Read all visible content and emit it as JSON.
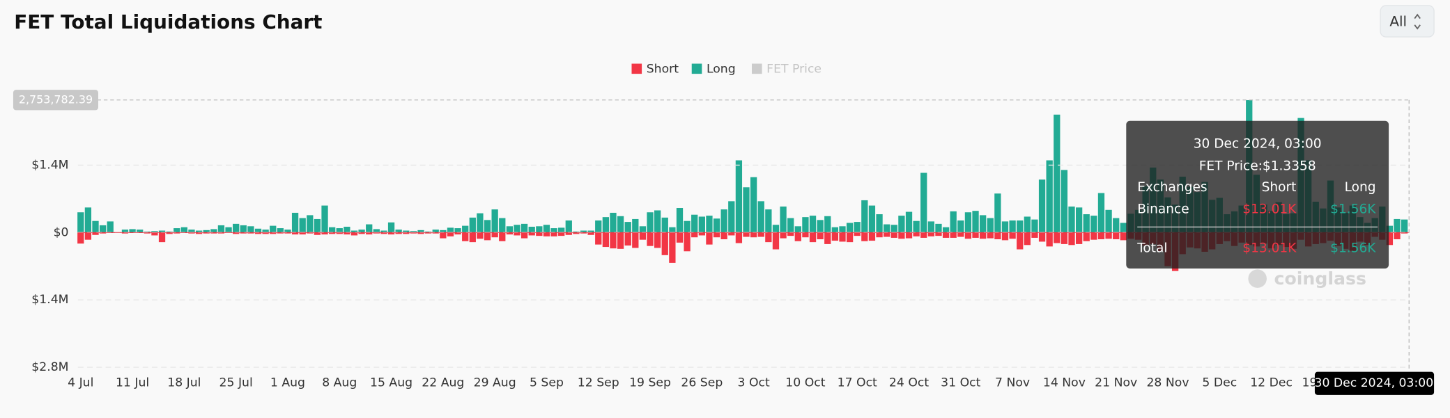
{
  "chart_data": {
    "type": "bar",
    "title": "FET Total Liquidations Chart",
    "range_selector": "All",
    "watermark": "coinglass",
    "categories": [
      "4 Jul",
      null,
      null,
      null,
      null,
      null,
      null,
      "11 Jul",
      null,
      null,
      null,
      null,
      null,
      null,
      "18 Jul",
      null,
      null,
      null,
      null,
      null,
      null,
      "25 Jul",
      null,
      null,
      null,
      null,
      null,
      null,
      "1 Aug",
      null,
      null,
      null,
      null,
      null,
      null,
      "8 Aug",
      null,
      null,
      null,
      null,
      null,
      null,
      "15 Aug",
      null,
      null,
      null,
      null,
      null,
      null,
      "22 Aug",
      null,
      null,
      null,
      null,
      null,
      null,
      "29 Aug",
      null,
      null,
      null,
      null,
      null,
      null,
      "5 Sep",
      null,
      null,
      null,
      null,
      null,
      null,
      "12 Sep",
      null,
      null,
      null,
      null,
      null,
      null,
      "19 Sep",
      null,
      null,
      null,
      null,
      null,
      null,
      "26 Sep",
      null,
      null,
      null,
      null,
      null,
      null,
      "3 Oct",
      null,
      null,
      null,
      null,
      null,
      null,
      "10 Oct",
      null,
      null,
      null,
      null,
      null,
      null,
      "17 Oct",
      null,
      null,
      null,
      null,
      null,
      null,
      "24 Oct",
      null,
      null,
      null,
      null,
      null,
      null,
      "31 Oct",
      null,
      null,
      null,
      null,
      null,
      null,
      "7 Nov",
      null,
      null,
      null,
      null,
      null,
      null,
      "14 Nov",
      null,
      null,
      null,
      null,
      null,
      null,
      "21 Nov",
      null,
      null,
      null,
      null,
      null,
      null,
      "28 Nov",
      null,
      null,
      null,
      null,
      null,
      null,
      "5 Dec",
      null,
      null,
      null,
      null,
      null,
      null,
      "12 Dec",
      null,
      null,
      null,
      null,
      null,
      null,
      "19 Dec",
      null,
      null,
      null,
      null,
      null,
      null,
      null,
      null,
      null,
      null,
      null
    ],
    "series": [
      {
        "name": "Short",
        "color": "#f23645",
        "values": [
          -230000,
          -150000,
          -50000,
          -20000,
          -10000,
          -10000,
          -20000,
          -10000,
          -10000,
          -20000,
          -60000,
          -200000,
          -30000,
          -20000,
          -10000,
          -20000,
          -30000,
          -20000,
          -20000,
          -20000,
          -10000,
          -30000,
          -20000,
          -20000,
          -30000,
          -30000,
          -30000,
          -20000,
          -20000,
          -40000,
          -40000,
          -20000,
          -50000,
          -40000,
          -30000,
          -30000,
          -40000,
          -60000,
          -30000,
          -40000,
          -20000,
          -30000,
          -40000,
          -30000,
          -30000,
          -20000,
          -30000,
          -20000,
          -20000,
          -120000,
          -80000,
          -40000,
          -180000,
          -200000,
          -130000,
          -160000,
          -100000,
          -180000,
          -40000,
          -60000,
          -120000,
          -60000,
          -70000,
          -80000,
          -80000,
          -70000,
          -50000,
          -30000,
          -20000,
          -50000,
          -250000,
          -300000,
          -330000,
          -340000,
          -270000,
          -320000,
          -150000,
          -280000,
          -320000,
          -470000,
          -630000,
          -210000,
          -390000,
          -100000,
          -60000,
          -250000,
          -100000,
          -140000,
          -60000,
          -220000,
          -90000,
          -100000,
          -90000,
          -200000,
          -350000,
          -120000,
          -70000,
          -180000,
          -100000,
          -200000,
          -140000,
          -240000,
          -170000,
          -190000,
          -200000,
          -70000,
          -180000,
          -170000,
          -100000,
          -90000,
          -110000,
          -130000,
          -120000,
          -80000,
          -110000,
          -80000,
          -70000,
          -110000,
          -110000,
          -90000,
          -130000,
          -110000,
          -130000,
          -120000,
          -140000,
          -160000,
          -130000,
          -350000,
          -260000,
          -110000,
          -190000,
          -290000,
          -220000,
          -240000,
          -260000,
          -240000,
          -180000,
          -150000,
          -140000,
          -130000,
          -140000,
          -160000,
          -130000,
          -150000,
          -270000,
          -240000,
          -390000,
          -700000,
          -800000,
          -450000,
          -310000,
          -330000,
          -400000,
          -350000,
          -240000,
          -180000,
          -280000,
          -210000,
          -260000,
          -290000,
          -230000,
          -330000,
          -260000,
          -300000,
          -340000,
          -150000,
          -290000,
          -240000,
          -220000,
          -170000,
          -280000,
          -340000,
          -380000,
          -190000,
          -260000,
          -90000,
          -150000,
          -260000,
          -140000,
          -20000
        ]
      },
      {
        "name": "Long",
        "color": "#22ab94",
        "values": [
          420000,
          520000,
          240000,
          150000,
          230000,
          10000,
          60000,
          70000,
          60000,
          20000,
          30000,
          40000,
          20000,
          90000,
          110000,
          60000,
          40000,
          50000,
          70000,
          150000,
          110000,
          180000,
          150000,
          130000,
          80000,
          60000,
          140000,
          90000,
          60000,
          410000,
          300000,
          360000,
          280000,
          560000,
          110000,
          90000,
          120000,
          40000,
          60000,
          170000,
          70000,
          40000,
          210000,
          60000,
          40000,
          30000,
          50000,
          20000,
          60000,
          50000,
          100000,
          90000,
          140000,
          310000,
          400000,
          260000,
          480000,
          300000,
          130000,
          160000,
          180000,
          120000,
          130000,
          160000,
          90000,
          100000,
          250000,
          20000,
          40000,
          40000,
          250000,
          320000,
          410000,
          340000,
          220000,
          280000,
          130000,
          420000,
          460000,
          310000,
          110000,
          510000,
          240000,
          370000,
          330000,
          350000,
          290000,
          480000,
          650000,
          1500000,
          940000,
          1150000,
          650000,
          480000,
          160000,
          540000,
          300000,
          130000,
          320000,
          350000,
          260000,
          340000,
          110000,
          130000,
          200000,
          220000,
          670000,
          560000,
          380000,
          170000,
          160000,
          350000,
          430000,
          240000,
          1240000,
          230000,
          180000,
          110000,
          440000,
          250000,
          420000,
          450000,
          360000,
          300000,
          810000,
          230000,
          250000,
          250000,
          330000,
          270000,
          1100000,
          1500000,
          2450000,
          1300000,
          540000,
          520000,
          380000,
          350000,
          820000,
          470000,
          300000,
          200000,
          390000,
          470000,
          960000,
          1350000,
          1100000,
          730000,
          580000,
          1160000,
          950000,
          840000,
          1050000,
          680000,
          720000,
          380000,
          440000,
          560000,
          2750000,
          1200000,
          580000,
          450000,
          630000,
          380000,
          400000,
          2380000,
          1500000,
          640000,
          500000,
          1080000,
          520000,
          410000,
          560000,
          320000,
          200000,
          300000,
          540000,
          140000,
          280000,
          270000
        ]
      },
      {
        "name": "FET Price",
        "color": "#cccccc"
      }
    ],
    "ylim": [
      -2800000,
      2780000
    ],
    "yticks": [
      {
        "value": -2800000,
        "label": "$2.8M"
      },
      {
        "value": -1400000,
        "label": "$1.4M"
      },
      {
        "value": 0,
        "label": "$0"
      },
      {
        "value": 1400000,
        "label": "$1.4M"
      }
    ],
    "grid": true,
    "crosshair": {
      "y": {
        "value": 2753782.39,
        "label": "2,753,782.39"
      },
      "x_label": "30 Dec 2024, 03:00"
    },
    "tooltip": {
      "title": "30 Dec 2024, 03:00",
      "price": "FET Price:$1.3358",
      "columns": [
        "Exchanges",
        "Short",
        "Long"
      ],
      "rows": [
        [
          "Binance",
          "$13.01K",
          "$1.56K"
        ],
        [
          "Total",
          "$13.01K",
          "$1.56K"
        ]
      ]
    }
  }
}
